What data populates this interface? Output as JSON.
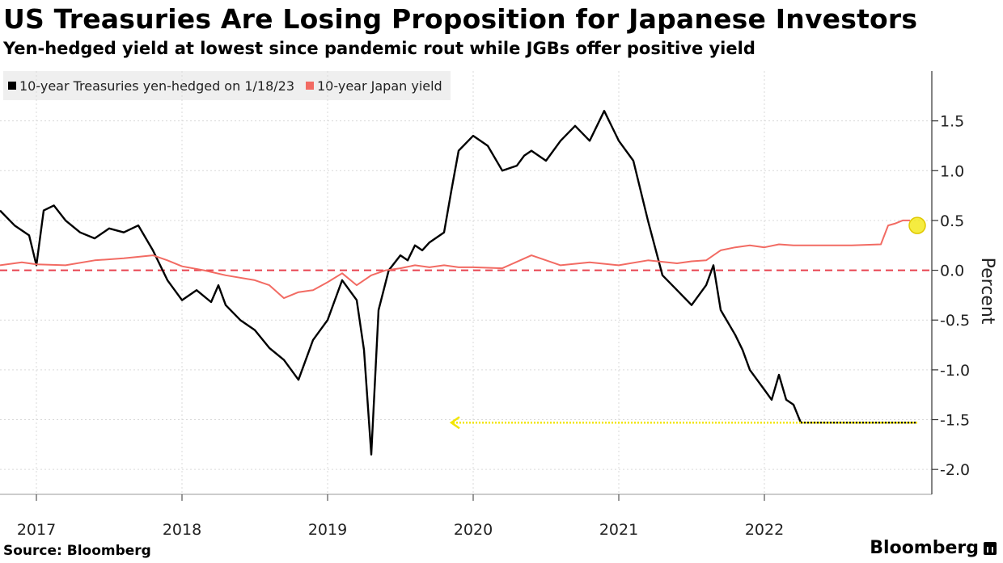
{
  "header": {
    "title": "US Treasuries Are Losing Proposition for Japanese Investors",
    "subtitle": "Yen-hedged yield at lowest since pandemic rout while JGBs offer positive yield"
  },
  "footer": {
    "source": "Source: Bloomberg",
    "brand": "Bloomberg"
  },
  "colors": {
    "treasuries": "#000000",
    "japan": "#f26b63",
    "zero_line": "#e8414d",
    "highlight": "#f2e600",
    "grid": "#d9d9d9"
  },
  "chart_data": {
    "type": "line",
    "title": "US Treasuries Are Losing Proposition for Japanese Investors",
    "subtitle": "Yen-hedged yield at lowest since pandemic rout while JGBs offer positive yield",
    "ylabel": "Percent",
    "xlabel": "",
    "ylim": [
      -2.25,
      2.0
    ],
    "xlim": [
      2016.75,
      2023.15
    ],
    "y_ticks": [
      1.5,
      1.0,
      0.5,
      0.0,
      -0.5,
      -1.0,
      -1.5,
      -2.0
    ],
    "y_tick_labels": [
      "1.5",
      "1.0",
      "0.5",
      "0.0",
      "-0.5",
      "-1.0",
      "-1.5",
      "-2.0"
    ],
    "x_ticks": [
      2017,
      2018,
      2019,
      2020,
      2021,
      2022
    ],
    "x_tick_labels": [
      "2017",
      "2018",
      "2019",
      "2020",
      "2021",
      "2022"
    ],
    "legend_position": "top-left",
    "reference_line": {
      "y": 0.0,
      "style": "dashed"
    },
    "annotations": [
      {
        "type": "arrow",
        "from_x": 2023.05,
        "to_x": 2019.85,
        "y": -1.53,
        "meaning": "current level vs pandemic rout"
      },
      {
        "type": "circle",
        "x": 2023.05,
        "y": 0.45
      }
    ],
    "series": [
      {
        "name": "10-year Treasuries yen-hedged on 1/18/23",
        "x": [
          2016.75,
          2016.85,
          2016.95,
          2017.0,
          2017.05,
          2017.12,
          2017.2,
          2017.3,
          2017.4,
          2017.5,
          2017.6,
          2017.7,
          2017.8,
          2017.9,
          2018.0,
          2018.1,
          2018.2,
          2018.25,
          2018.3,
          2018.4,
          2018.5,
          2018.6,
          2018.7,
          2018.8,
          2018.9,
          2019.0,
          2019.1,
          2019.2,
          2019.25,
          2019.3,
          2019.35,
          2019.42,
          2019.5,
          2019.55,
          2019.6,
          2019.65,
          2019.7,
          2019.8,
          2019.85,
          2019.9,
          2020.0,
          2020.1,
          2020.2,
          2020.3,
          2020.35,
          2020.4,
          2020.5,
          2020.6,
          2020.7,
          2020.8,
          2020.9,
          2021.0,
          2021.1,
          2021.2,
          2021.3,
          2021.4,
          2021.5,
          2021.6,
          2021.65,
          2021.7,
          2021.8,
          2021.85,
          2021.9,
          2022.0,
          2022.05,
          2022.1,
          2022.15,
          2022.2,
          2022.25,
          2022.3,
          2022.35,
          2022.4,
          2022.45,
          2022.5,
          2022.55,
          2022.6,
          2022.65,
          2022.7,
          2022.75,
          2022.8,
          2022.85,
          2022.9,
          2022.95,
          2023.0,
          2023.05
        ],
        "values": [
          0.6,
          0.45,
          0.35,
          0.05,
          0.6,
          0.65,
          0.5,
          0.38,
          0.32,
          0.42,
          0.38,
          0.45,
          0.2,
          -0.1,
          -0.3,
          -0.2,
          -0.32,
          -0.15,
          -0.35,
          -0.5,
          -0.6,
          -0.78,
          -0.9,
          -1.1,
          -0.7,
          -0.5,
          -0.1,
          -0.3,
          -0.8,
          -1.85,
          -0.4,
          0.0,
          0.15,
          0.1,
          0.25,
          0.2,
          0.28,
          0.38,
          0.8,
          1.2,
          1.35,
          1.25,
          1.0,
          1.05,
          1.15,
          1.2,
          1.1,
          1.3,
          1.45,
          1.3,
          1.6,
          1.3,
          1.1,
          0.5,
          -0.05,
          -0.2,
          -0.35,
          -0.15,
          0.05,
          -0.4,
          -0.65,
          -0.8,
          -1.0,
          -1.2,
          -1.3,
          -1.05,
          -1.3,
          -1.35,
          -1.53,
          -1.53,
          -1.53,
          -1.53,
          -1.53,
          -1.53,
          -1.53,
          -1.53,
          -1.53,
          -1.53,
          -1.53,
          -1.53,
          -1.53,
          -1.53,
          -1.53,
          -1.53,
          -1.53
        ]
      },
      {
        "name": "10-year Japan yield",
        "x": [
          2016.75,
          2016.9,
          2017.0,
          2017.2,
          2017.4,
          2017.6,
          2017.8,
          2017.9,
          2018.0,
          2018.15,
          2018.3,
          2018.5,
          2018.6,
          2018.7,
          2018.8,
          2018.9,
          2019.0,
          2019.1,
          2019.2,
          2019.3,
          2019.4,
          2019.5,
          2019.6,
          2019.7,
          2019.8,
          2019.9,
          2020.0,
          2020.2,
          2020.4,
          2020.6,
          2020.8,
          2021.0,
          2021.2,
          2021.4,
          2021.5,
          2021.6,
          2021.7,
          2021.8,
          2021.9,
          2022.0,
          2022.1,
          2022.2,
          2022.4,
          2022.6,
          2022.8,
          2022.85,
          2022.9,
          2022.95,
          2023.0
        ],
        "values": [
          0.05,
          0.08,
          0.06,
          0.05,
          0.1,
          0.12,
          0.15,
          0.1,
          0.04,
          0.0,
          -0.05,
          -0.1,
          -0.15,
          -0.28,
          -0.22,
          -0.2,
          -0.12,
          -0.03,
          -0.15,
          -0.05,
          0.0,
          0.02,
          0.05,
          0.03,
          0.05,
          0.03,
          0.03,
          0.02,
          0.15,
          0.05,
          0.08,
          0.05,
          0.1,
          0.07,
          0.09,
          0.1,
          0.2,
          0.23,
          0.25,
          0.23,
          0.26,
          0.25,
          0.25,
          0.25,
          0.26,
          0.45,
          0.47,
          0.5,
          0.5
        ]
      }
    ]
  }
}
